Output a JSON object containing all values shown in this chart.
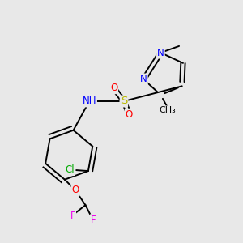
{
  "bg_color": "#e8e8e8",
  "atom_colors": {
    "N": "#0000ff",
    "O": "#ff0000",
    "S": "#b8b800",
    "Cl": "#00aa00",
    "F": "#ee00ee",
    "C": "#000000",
    "H": "#606060"
  },
  "figsize": [
    3.0,
    3.0
  ],
  "dpi": 100
}
